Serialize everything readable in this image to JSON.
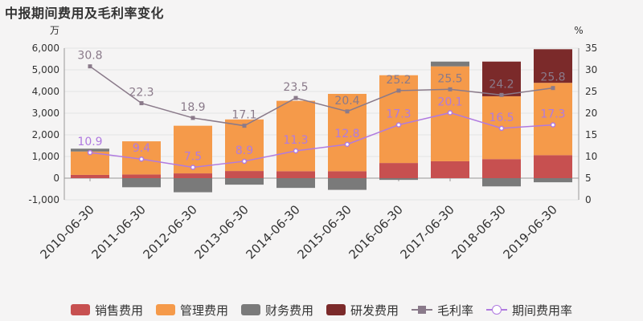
{
  "chart_data": {
    "type": "bar",
    "title": "中报期间费用及毛利率变化",
    "categories": [
      "2010-06-30",
      "2011-06-30",
      "2012-06-30",
      "2013-06-30",
      "2014-06-30",
      "2015-06-30",
      "2016-06-30",
      "2017-06-30",
      "2018-06-30",
      "2019-06-30"
    ],
    "y_left": {
      "unit": "万",
      "ylim": [
        -1000,
        6000
      ],
      "ticks": [
        "-1,000",
        "0",
        "1,000",
        "2,000",
        "3,000",
        "4,000",
        "5,000",
        "6,000"
      ]
    },
    "y_right": {
      "unit": "%",
      "ylim": [
        0,
        35
      ],
      "ticks": [
        "0",
        "5",
        "10",
        "15",
        "20",
        "25",
        "30",
        "35"
      ]
    },
    "grid": true,
    "legend_position": "bottom",
    "series": [
      {
        "name": "销售费用",
        "kind": "bar",
        "color": "#c75050",
        "values": [
          150,
          170,
          220,
          330,
          320,
          320,
          700,
          780,
          880,
          1060
        ]
      },
      {
        "name": "管理费用",
        "kind": "bar",
        "color": "#f59a4a",
        "values": [
          1080,
          1530,
          2200,
          2380,
          3250,
          3570,
          4050,
          4380,
          2900,
          3340
        ]
      },
      {
        "name": "财务费用",
        "kind": "bar",
        "color": "#7a7a7a",
        "values": [
          130,
          -420,
          -650,
          -300,
          -450,
          -540,
          -80,
          220,
          -380,
          -190
        ]
      },
      {
        "name": "研发费用",
        "kind": "bar",
        "color": "#7b2a2a",
        "values": [
          0,
          0,
          0,
          0,
          0,
          0,
          0,
          0,
          1600,
          1550
        ]
      },
      {
        "name": "毛利率",
        "kind": "line",
        "color": "#8a7a8a",
        "marker": "square",
        "values": [
          30.8,
          22.3,
          18.9,
          17.1,
          23.5,
          20.4,
          25.2,
          25.5,
          24.2,
          25.8
        ]
      },
      {
        "name": "期间费用率",
        "kind": "line",
        "color": "#b07ae0",
        "marker": "circle",
        "values": [
          10.9,
          9.4,
          7.5,
          8.9,
          11.3,
          12.8,
          17.3,
          20.1,
          16.5,
          17.3
        ]
      }
    ]
  }
}
